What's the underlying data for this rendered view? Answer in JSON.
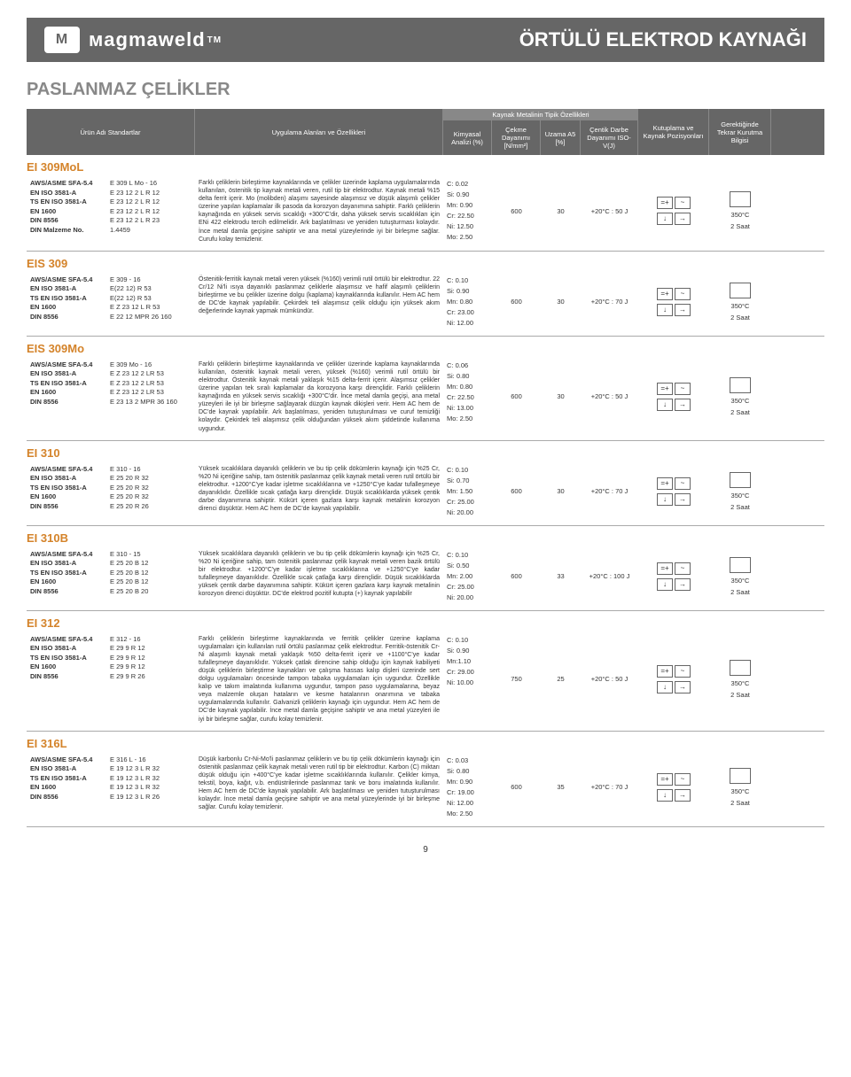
{
  "header": {
    "brand": "мagmaweld",
    "tm": "TM",
    "title": "ÖRTÜLÜ ELEKTROD KAYNAĞI"
  },
  "section_title": "PASLANMAZ ÇELİKLER",
  "columns": {
    "name": "Ürün Adı\nStandartlar",
    "app": "Uygulama Alanları ve Özellikleri",
    "metal_props": "Kaynak Metalinin Tipik Özellikleri",
    "chem": "Kimyasal Analizi (%)",
    "tensile": "Çekme Dayanımı [N/mm²]",
    "elong": "Uzama A5 [%]",
    "impact": "Çentik Darbe Dayanımı ISO-V(J)",
    "pos": "Kutuplama ve Kaynak Pozisyonları",
    "redry": "Gerektiğinde Tekrar Kurutma Bilgisi"
  },
  "products": [
    {
      "name": "EI 309MoL",
      "standards": [
        {
          "l": "AWS/ASME SFA-5.4",
          "v": "E 309 L Mo - 16"
        },
        {
          "l": "EN ISO 3581-A",
          "v": "E 23 12 2 L R 12"
        },
        {
          "l": "TS EN ISO 3581-A",
          "v": "E 23 12 2 L R 12"
        },
        {
          "l": "EN 1600",
          "v": "E 23 12 2 L R 12"
        },
        {
          "l": "DIN 8556",
          "v": "E 23 12 2 L R 23"
        },
        {
          "l": "DIN Malzeme No.",
          "v": "1.4459"
        }
      ],
      "app": "Farklı çeliklerin birleştirme kaynaklarında ve çelikler üzerinde kaplama uygulamalarında kullanılan, östenitik tip kaynak metali veren, rutil tip bir elektrodtur. Kaynak metali %15 delta ferrit içerir. Mo (molibden) alaşımı sayesinde alaşımsız ve düşük alaşımlı çelikler üzerine yapılan kaplamalar ilk pasoda da korozyon dayanımına sahiptir. Farklı çeliklerin kaynağında en yüksek servis sıcaklığı +300°C'dir, daha yüksek servis sıcaklıkları için ENi 422 elektrodu tercih edilmelidir. Ark başlatılması ve yeniden tutuşturması kolaydır. İnce metal damla geçişine sahiptir ve ana metal yüzeylerinde iyi bir birleşme sağlar. Curufu kolay temizlenir.",
      "chem": [
        "C: 0.02",
        "Si: 0.90",
        "Mn: 0.90",
        "Cr: 22.50",
        "Ni: 12.50",
        "Mo: 2.50"
      ],
      "tensile": "600",
      "elong": "30",
      "impact": "+20°C : 50 J",
      "redry_temp": "350°C",
      "redry_time": "2 Saat"
    },
    {
      "name": "EIS 309",
      "standards": [
        {
          "l": "AWS/ASME SFA-5.4",
          "v": "E 309 - 16"
        },
        {
          "l": "EN ISO 3581-A",
          "v": "E(22 12) R 53"
        },
        {
          "l": "TS EN ISO 3581-A",
          "v": "E(22 12) R 53"
        },
        {
          "l": "EN 1600",
          "v": "E Z 23 12 L R 53"
        },
        {
          "l": "DIN 8556",
          "v": "E 22 12 MPR 26 160"
        }
      ],
      "app": "Östenitik-ferritik kaynak metali veren yüksek (%160) verimli rutil örtülü bir elektrodtur. 22 Cr/12 Ni'li ısıya dayanıklı paslanmaz çeliklerle alaşımsız ve hafif alaşımlı çeliklerin birleştirme ve bu çelikler üzerine dolgu (kaplama) kaynaklarında kullanılır. Hem AC hem de DC'de kaynak yapılabilir. Çekirdek teli alaşımsız çelik olduğu için yüksek akım değerlerinde kaynak yapmak mümkündür.",
      "chem": [
        "C: 0.10",
        "Si: 0.90",
        "Mn: 0.80",
        "Cr: 23.00",
        "Ni: 12.00"
      ],
      "tensile": "600",
      "elong": "30",
      "impact": "+20°C : 70 J",
      "redry_temp": "350°C",
      "redry_time": "2 Saat"
    },
    {
      "name": "EIS 309Mo",
      "standards": [
        {
          "l": "AWS/ASME SFA-5.4",
          "v": "E 309 Mo - 16"
        },
        {
          "l": "EN ISO 3581-A",
          "v": "E Z 23 12 2 LR 53"
        },
        {
          "l": "TS EN ISO 3581-A",
          "v": "E Z 23 12 2 LR 53"
        },
        {
          "l": "EN 1600",
          "v": "E Z 23 12 2 LR 53"
        },
        {
          "l": "DIN 8556",
          "v": "E 23 13 2 MPR 36 160"
        }
      ],
      "app": "Farklı çeliklerin birleştirme kaynaklarında ve çelikler üzerinde kaplama kaynaklarında kullanılan, östenitik kaynak metali veren, yüksek (%160) verimli rutil örtülü bir elektrodtur. Östenitik kaynak metali yaklaşık %15 delta-ferrit içerir. Alaşımsız çelikler üzerine yapılan tek sıralı kaplamalar da korozyona karşı dirençlidir. Farklı çeliklerin kaynağında en yüksek servis sıcaklığı +300°C'dir. İnce metal damla geçişi, ana metal yüzeyleri ile iyi bir birleşme sağlayarak düzgün kaynak dikişleri verir. Hem AC hem de DC'de kaynak yapılabilir. Ark başlatılması, yeniden tutuşturulması ve curuf temizliği kolaydır. Çekirdek teli alaşımsız çelik olduğundan yüksek akım şiddetinde kullanıma uygundur.",
      "chem": [
        "C: 0.06",
        "Si: 0.80",
        "Mn: 0.80",
        "Cr: 22.50",
        "Ni: 13.00",
        "Mo: 2.50"
      ],
      "tensile": "600",
      "elong": "30",
      "impact": "+20°C : 50 J",
      "redry_temp": "350°C",
      "redry_time": "2 Saat"
    },
    {
      "name": "EI 310",
      "standards": [
        {
          "l": "AWS/ASME SFA-5.4",
          "v": "E 310 - 16"
        },
        {
          "l": "EN ISO 3581-A",
          "v": "E 25 20 R 32"
        },
        {
          "l": "TS EN ISO 3581-A",
          "v": "E 25 20 R 32"
        },
        {
          "l": "EN 1600",
          "v": "E 25 20 R 32"
        },
        {
          "l": "DIN 8556",
          "v": "E 25 20 R 26"
        }
      ],
      "app": "Yüksek sıcaklıklara dayanıklı çeliklerin ve bu tip çelik dökümlerin kaynağı için %25 Cr, %20 Ni içeriğine sahip, tam östenitik paslanmaz çelik kaynak metali veren rutil örtülü bir elektrodtur. +1200°C'ye kadar işletme sıcaklıklarına ve +1250°C'ye kadar tufalleşmeye dayanıklıdır. Özellikle sıcak çatlağa karşı dirençlidir. Düşük sıcaklıklarda yüksek çentik darbe dayanımına sahiptir. Kükürt içeren gazlara karşı kaynak metalinin korozyon direnci düşüktür. Hem AC hem de DC'de kaynak yapılabilir.",
      "chem": [
        "C: 0.10",
        "Si: 0.70",
        "Mn: 1.50",
        "Cr: 25.00",
        "Ni: 20.00"
      ],
      "tensile": "600",
      "elong": "30",
      "impact": "+20°C : 70 J",
      "redry_temp": "350°C",
      "redry_time": "2 Saat"
    },
    {
      "name": "EI 310B",
      "standards": [
        {
          "l": "AWS/ASME SFA-5.4",
          "v": "E 310 - 15"
        },
        {
          "l": "EN ISO 3581-A",
          "v": "E 25 20 B 12"
        },
        {
          "l": "TS EN ISO 3581-A",
          "v": "E 25 20 B 12"
        },
        {
          "l": "EN 1600",
          "v": "E 25 20 B 12"
        },
        {
          "l": "DIN 8556",
          "v": "E 25 20 B 20"
        }
      ],
      "app": "Yüksek sıcaklıklara dayanıklı çeliklerin ve bu tip çelik dökümlerin kaynağı için %25 Cr, %20 Ni içeriğine sahip, tam östenitik paslanmaz çelik kaynak metali veren bazik örtülü bir elektrodtur. +1200°C'ye kadar işletme sıcaklıklarına ve +1250°C'ye kadar tufalleşmeye dayanıklıdır. Özellikle sıcak çatlağa karşı dirençlidir. Düşük sıcaklıklarda yüksek çentik darbe dayanımına sahiptir. Kükürt içeren gazlara karşı kaynak metalinin korozyon direnci düşüktür. DC'de elektrod pozitif kutupta (+) kaynak yapılabilir",
      "chem": [
        "C: 0.10",
        "Si: 0.50",
        "Mn: 2.00",
        "Cr: 25.00",
        "Ni: 20.00"
      ],
      "tensile": "600",
      "elong": "33",
      "impact": "+20°C : 100 J",
      "redry_temp": "350°C",
      "redry_time": "2 Saat"
    },
    {
      "name": "EI 312",
      "standards": [
        {
          "l": "AWS/ASME SFA-5.4",
          "v": "E 312 - 16"
        },
        {
          "l": "EN ISO 3581-A",
          "v": "E 29 9 R 12"
        },
        {
          "l": "TS EN ISO 3581-A",
          "v": "E 29 9 R 12"
        },
        {
          "l": "EN 1600",
          "v": "E 29 9 R 12"
        },
        {
          "l": "DIN 8556",
          "v": "E 29 9 R 26"
        }
      ],
      "app": "Farklı çeliklerin birleştirme kaynaklarında ve ferritik çelikler üzerine kaplama uygulamaları için kullanılan rutil örtülü paslanmaz çelik elektrodtur. Ferritik-östenitik Cr-Ni alaşımlı kaynak metali yaklaşık %50 delta-ferrit içerir ve +1100°C'ye kadar tufalleşmeye dayanıklıdır. Yüksek çatlak direncine sahip olduğu için kaynak kabiliyeti düşük çeliklerin birleştirme kaynakları ve çalışma hassas kalıp dişleri üzerinde sert dolgu uygulamaları öncesinde tampon tabaka uygulamaları için uygundur. Özellikle kalıp ve takım imalatında kullanıma uygundur, tampon paso uygulamalarına, beyaz veya malzemle oluşan hataların ve kesme hatalarının onarımına ve tabaka uygulamalarında kullanılır. Galvanizli çeliklerin kaynağı için uygundur. Hem AC hem de DC'de kaynak yapılabilir. İnce metal damla geçişine sahiptir ve ana metal yüzeyleri ile iyi bir birleşme sağlar, curufu kolay temizlenir.",
      "chem": [
        "C: 0.10",
        "Si: 0.90",
        "Mn:1.10",
        "Cr: 29.00",
        "Ni: 10.00"
      ],
      "tensile": "750",
      "elong": "25",
      "impact": "+20°C : 50 J",
      "redry_temp": "350°C",
      "redry_time": "2 Saat"
    },
    {
      "name": "EI 316L",
      "standards": [
        {
          "l": "AWS/ASME SFA-5.4",
          "v": "E 316 L - 16"
        },
        {
          "l": "EN ISO 3581-A",
          "v": "E 19 12 3 L R 32"
        },
        {
          "l": "TS EN ISO 3581-A",
          "v": "E 19 12 3 L R 32"
        },
        {
          "l": "EN 1600",
          "v": "E 19 12 3 L R 32"
        },
        {
          "l": "DIN 8556",
          "v": "E 19 12 3 L R 26"
        }
      ],
      "app": "Düşük karbonlu Cr-Ni-Mo'li paslanmaz çeliklerin ve bu tip çelik dökümlerin kaynağı için östenitik paslanmaz çelik kaynak metali veren rutil tip bir elektrodtur. Karbon (C) miktarı düşük olduğu için +400°C'ye kadar işletme sıcaklıklarında kullanılır. Çelikler kimya, tekstil, boya, kağıt, v.b. endüstrilerinde paslanmaz tank ve boru imalatında kullanılır. Hem AC hem de DC'de kaynak yapılabilir. Ark başlatılması ve yeniden tutuşturulması kolaydır. İnce metal damla geçişine sahiptir ve ana metal yüzeylerinde iyi bir birleşme sağlar. Curufu kolay temizlenir.",
      "chem": [
        "C: 0.03",
        "Si: 0.80",
        "Mn: 0.90",
        "Cr: 19.00",
        "Ni: 12.00",
        "Mo: 2.50"
      ],
      "tensile": "600",
      "elong": "35",
      "impact": "+20°C : 70 J",
      "redry_temp": "350°C",
      "redry_time": "2 Saat"
    }
  ],
  "page_number": "9"
}
